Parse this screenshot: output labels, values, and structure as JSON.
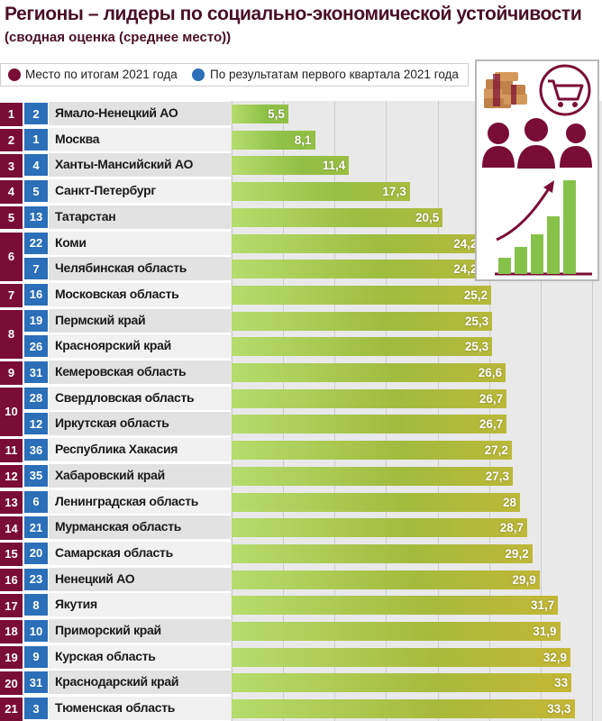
{
  "title": "Регионы – лидеры по социально-экономической устойчивости",
  "subtitle": "(сводная оценка (среднее место))",
  "legend": {
    "place_2021": "Место по итогам 2021 года",
    "place_q1_2021": "По результатам первого квартала 2021 года"
  },
  "colors": {
    "rank_2021": "#7a0d35",
    "rank_q1": "#2a6fb8",
    "bar_start": "#86c24a",
    "bar_end": "#c9b634",
    "title": "#4a0f26"
  },
  "icons": [
    "money-stack-icon",
    "shopping-cart-icon",
    "people-icon",
    "growth-chart-icon"
  ],
  "chart_data": {
    "type": "bar",
    "orientation": "horizontal",
    "title": "Регионы – лидеры по социально-экономической устойчивости",
    "subtitle": "(сводная оценка (среднее место))",
    "xlim": [
      0,
      35
    ],
    "grid": true,
    "legend_position": "top",
    "rows": [
      {
        "rank_2021": "1",
        "rank_q1": "2",
        "region": "Ямало-Ненецкий АО",
        "label": "5,5",
        "value": 5.5
      },
      {
        "rank_2021": "2",
        "rank_q1": "1",
        "region": "Москва",
        "label": "8,1",
        "value": 8.1
      },
      {
        "rank_2021": "3",
        "rank_q1": "4",
        "region": "Ханты-Мансийский АО",
        "label": "11,4",
        "value": 11.4
      },
      {
        "rank_2021": "4",
        "rank_q1": "5",
        "region": "Санкт-Петербург",
        "label": "17,3",
        "value": 17.3
      },
      {
        "rank_2021": "5",
        "rank_q1": "13",
        "region": "Татарстан",
        "label": "20,5",
        "value": 20.5
      },
      {
        "rank_2021": "6",
        "rank_q1": "22",
        "region": "Коми",
        "label": "24,2",
        "value": 24.2
      },
      {
        "rank_2021": "6",
        "rank_q1": "7",
        "region": "Челябинская область",
        "label": "24,2",
        "value": 24.2
      },
      {
        "rank_2021": "7",
        "rank_q1": "16",
        "region": "Московская область",
        "label": "25,2",
        "value": 25.2
      },
      {
        "rank_2021": "8",
        "rank_q1": "19",
        "region": "Пермский край",
        "label": "25,3",
        "value": 25.3
      },
      {
        "rank_2021": "8",
        "rank_q1": "26",
        "region": "Красноярский край",
        "label": "25,3",
        "value": 25.3
      },
      {
        "rank_2021": "9",
        "rank_q1": "31",
        "region": "Кемеровская область",
        "label": "26,6",
        "value": 26.6
      },
      {
        "rank_2021": "10",
        "rank_q1": "28",
        "region": "Свердловская область",
        "label": "26,7",
        "value": 26.7
      },
      {
        "rank_2021": "10",
        "rank_q1": "12",
        "region": "Иркутская область",
        "label": "26,7",
        "value": 26.7
      },
      {
        "rank_2021": "11",
        "rank_q1": "36",
        "region": "Республика Хакасия",
        "label": "27,2",
        "value": 27.2
      },
      {
        "rank_2021": "12",
        "rank_q1": "35",
        "region": "Хабаровский край",
        "label": "27,3",
        "value": 27.3
      },
      {
        "rank_2021": "13",
        "rank_q1": "6",
        "region": "Ленинградская область",
        "label": "28",
        "value": 28
      },
      {
        "rank_2021": "14",
        "rank_q1": "21",
        "region": "Мурманская область",
        "label": "28,7",
        "value": 28.7
      },
      {
        "rank_2021": "15",
        "rank_q1": "20",
        "region": "Самарская область",
        "label": "29,2",
        "value": 29.2
      },
      {
        "rank_2021": "16",
        "rank_q1": "23",
        "region": "Ненецкий АО",
        "label": "29,9",
        "value": 29.9
      },
      {
        "rank_2021": "17",
        "rank_q1": "8",
        "region": "Якутия",
        "label": "31,7",
        "value": 31.7
      },
      {
        "rank_2021": "18",
        "rank_q1": "10",
        "region": "Приморский край",
        "label": "31,9",
        "value": 31.9
      },
      {
        "rank_2021": "19",
        "rank_q1": "9",
        "region": "Курская область",
        "label": "32,9",
        "value": 32.9
      },
      {
        "rank_2021": "20",
        "rank_q1": "31",
        "region": "Краснодарский край",
        "label": "33",
        "value": 33
      },
      {
        "rank_2021": "21",
        "rank_q1": "3",
        "region": "Тюменская область",
        "label": "33,3",
        "value": 33.3
      }
    ]
  }
}
